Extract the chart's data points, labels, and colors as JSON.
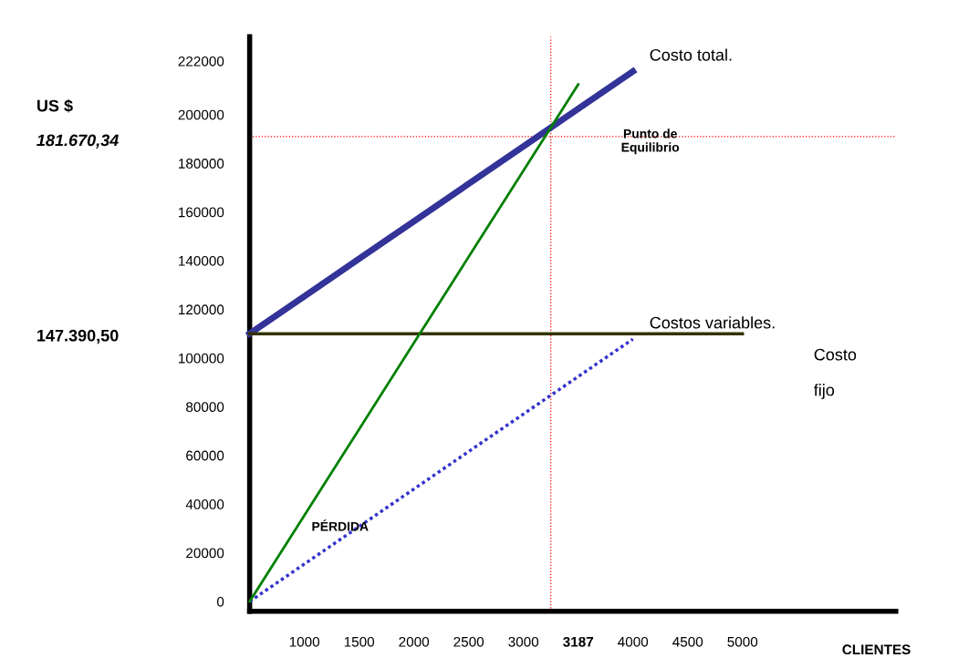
{
  "chart_data": {
    "type": "line",
    "categories": [
      null,
      "1000",
      "1500",
      "2000",
      "2500",
      "3000",
      "3187",
      "4000",
      "4500",
      "5000"
    ],
    "ylim": [
      -4000,
      232000
    ],
    "yticks": [
      0,
      20000,
      40000,
      60000,
      80000,
      100000,
      120000,
      140000,
      160000,
      180000,
      200000,
      222000
    ],
    "grid": false,
    "legend": false,
    "marker": "none",
    "series": [
      {
        "name": "Costo total.",
        "color": "#333399",
        "line_style": "solid",
        "values": [
          110000,
          125400,
          140800,
          156200,
          171600,
          187000,
          202400,
          217800,
          null,
          null
        ]
      },
      {
        "name": "Costo fijo",
        "color": "#333300",
        "line_style": "solid",
        "values": [
          110000,
          110000,
          110000,
          110000,
          110000,
          110000,
          110000,
          110000,
          110000,
          110000
        ]
      },
      {
        "name": "Costos variables.",
        "color": "#3333cc",
        "line_style": "dotted",
        "values": [
          0,
          15400,
          30800,
          46200,
          61600,
          77000,
          92400,
          107800,
          null,
          null
        ]
      },
      {
        "color": "#008000",
        "line_style": "solid",
        "values": [
          0,
          35400,
          70800,
          106200,
          141600,
          177000,
          212400,
          null,
          null,
          null
        ]
      }
    ],
    "ref_lines": [
      {
        "axis": "x",
        "value": "3187",
        "color": "#ff0000",
        "line_style": "dotted"
      },
      {
        "axis": "y",
        "value": 191000,
        "color": "#ff0000",
        "line_style": "dotted"
      }
    ],
    "annotations": [
      "181.670,34",
      "147.390,50",
      "Punto de Equilibrio",
      "PÉRDIDA",
      "US $",
      "CLIENTES"
    ]
  }
}
